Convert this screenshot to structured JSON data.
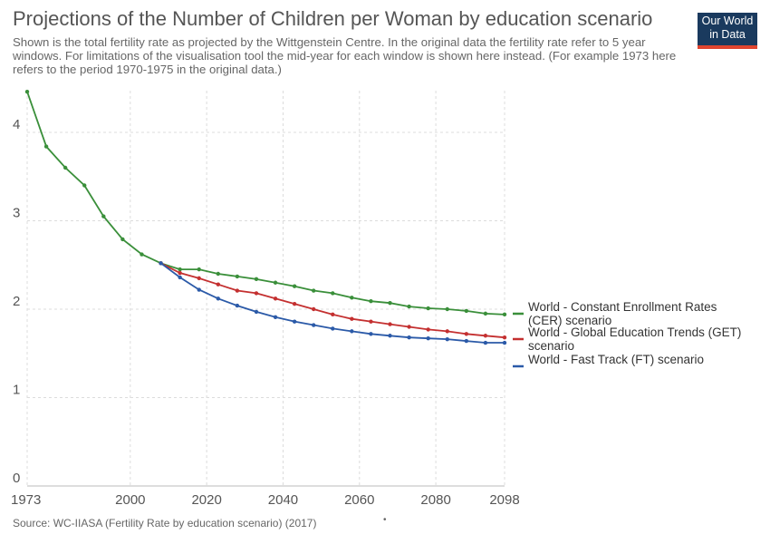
{
  "header": {
    "title": "Projections of the Number of Children per Woman by education scenario",
    "subtitle": "Shown is the total fertility rate as projected by the Wittgenstein Centre. In the original data the fertility rate refer to 5 year windows. For limitations of the visualisation tool the mid-year for each window is shown here instead. (For example 1973 here refers to the period 1970-1975 in the original data.)"
  },
  "logo": {
    "line1": "Our World",
    "line2": "in Data",
    "color": "#1a3a5e",
    "accent": "#e0452f"
  },
  "footer": {
    "source": "Source: WC-IIASA (Fertility Rate by education scenario) (2017)",
    "mark": "•"
  },
  "chart_data": {
    "type": "line",
    "title": "Projections of the Number of Children per Woman by education scenario",
    "xlabel": "",
    "ylabel": "",
    "xlim": [
      1973,
      2098
    ],
    "ylim": [
      0,
      4.5
    ],
    "x_ticks": [
      "1973",
      "2000",
      "2020",
      "2040",
      "2060",
      "2080",
      "2098"
    ],
    "y_ticks": [
      "0",
      "1",
      "2",
      "3",
      "4"
    ],
    "grid": true,
    "legend_placement": "right",
    "series": [
      {
        "name": "World - Constant Enrollment Rates (CER) scenario",
        "color": "#3a8f3a",
        "x": [
          1973,
          1978,
          1983,
          1988,
          1993,
          1998,
          2003,
          2008,
          2013,
          2018,
          2023,
          2028,
          2033,
          2038,
          2043,
          2048,
          2053,
          2058,
          2063,
          2068,
          2073,
          2078,
          2083,
          2088,
          2093,
          2098
        ],
        "values": [
          4.46,
          3.84,
          3.6,
          3.4,
          3.05,
          2.79,
          2.62,
          2.52,
          2.45,
          2.45,
          2.4,
          2.37,
          2.34,
          2.3,
          2.26,
          2.21,
          2.18,
          2.13,
          2.09,
          2.07,
          2.03,
          2.01,
          2.0,
          1.98,
          1.95,
          1.94
        ]
      },
      {
        "name": "World - Global Education Trends (GET) scenario",
        "color": "#c43030",
        "x": [
          2008,
          2013,
          2018,
          2023,
          2028,
          2033,
          2038,
          2043,
          2048,
          2053,
          2058,
          2063,
          2068,
          2073,
          2078,
          2083,
          2088,
          2093,
          2098
        ],
        "values": [
          2.52,
          2.41,
          2.35,
          2.28,
          2.21,
          2.18,
          2.12,
          2.06,
          2.0,
          1.94,
          1.89,
          1.86,
          1.83,
          1.8,
          1.77,
          1.75,
          1.72,
          1.7,
          1.68
        ]
      },
      {
        "name": "World - Fast Track (FT) scenario",
        "color": "#2b5aa8",
        "x": [
          2008,
          2013,
          2018,
          2023,
          2028,
          2033,
          2038,
          2043,
          2048,
          2053,
          2058,
          2063,
          2068,
          2073,
          2078,
          2083,
          2088,
          2093,
          2098
        ],
        "values": [
          2.52,
          2.36,
          2.22,
          2.12,
          2.04,
          1.97,
          1.91,
          1.86,
          1.82,
          1.78,
          1.75,
          1.72,
          1.7,
          1.68,
          1.67,
          1.66,
          1.64,
          1.62,
          1.62
        ]
      }
    ],
    "legend": [
      {
        "line1": "World - Constant Enrollment Rates",
        "line2": "(CER) scenario"
      },
      {
        "line1": "World - Global Education Trends (GET)",
        "line2": "scenario"
      },
      {
        "line1": "World - Fast Track (FT) scenario",
        "line2": ""
      }
    ]
  }
}
